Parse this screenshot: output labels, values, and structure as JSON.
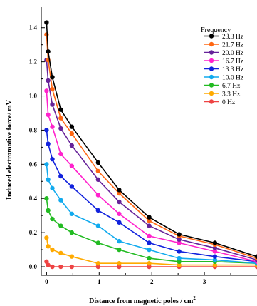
{
  "chart_data": {
    "type": "line",
    "title": "",
    "xlabel": "Distance from magnetic poles / cm",
    "xlabel_superscript": "2",
    "ylabel": "Induced electromotive force/ mV",
    "xlim": [
      -0.1,
      4.0
    ],
    "ylim": [
      -0.05,
      1.52
    ],
    "x_ticks": [
      0,
      1,
      2,
      3
    ],
    "x_tick_labels": [
      "0",
      "1",
      "2",
      "3"
    ],
    "y_ticks": [
      0.0,
      0.2,
      0.4,
      0.6,
      0.8,
      1.0,
      1.2,
      1.4
    ],
    "y_tick_labels": [
      "0.0",
      "0.2",
      "0.4",
      "0.6",
      "0.8",
      "1.0",
      "1.2",
      "1.4"
    ],
    "grid": false,
    "legend_title": "Frequency",
    "legend_position": "top-right",
    "x": [
      0,
      0.03,
      0.11,
      0.27,
      0.48,
      0.98,
      1.38,
      1.95,
      2.52,
      3.2,
      4.0
    ],
    "series": [
      {
        "name": "23.3 Hz",
        "color": "#000000",
        "values": [
          1.43,
          1.26,
          1.11,
          0.92,
          0.82,
          0.61,
          0.45,
          0.29,
          0.19,
          0.14,
          0.06
        ]
      },
      {
        "name": "21.7 Hz",
        "color": "#ff6611",
        "values": [
          1.36,
          1.21,
          1.04,
          0.87,
          0.78,
          0.56,
          0.43,
          0.27,
          0.18,
          0.13,
          0.05
        ]
      },
      {
        "name": "20.0 Hz",
        "color": "#662299",
        "values": [
          1.21,
          1.09,
          0.95,
          0.81,
          0.71,
          0.51,
          0.38,
          0.24,
          0.16,
          0.11,
          0.04
        ]
      },
      {
        "name": "16.7 Hz",
        "color": "#ff22cc",
        "values": [
          1.03,
          0.89,
          0.82,
          0.66,
          0.59,
          0.42,
          0.31,
          0.18,
          0.14,
          0.09,
          0.03
        ]
      },
      {
        "name": "13.3 Hz",
        "color": "#1122dd",
        "values": [
          0.8,
          0.72,
          0.63,
          0.53,
          0.47,
          0.33,
          0.26,
          0.14,
          0.09,
          0.06,
          0.03
        ]
      },
      {
        "name": "10.0 Hz",
        "color": "#11aaee",
        "values": [
          0.6,
          0.51,
          0.46,
          0.39,
          0.31,
          0.24,
          0.15,
          0.1,
          0.05,
          0.04,
          0.02
        ]
      },
      {
        "name": "6.7 Hz",
        "color": "#22bb22",
        "values": [
          0.4,
          0.33,
          0.28,
          0.24,
          0.2,
          0.14,
          0.1,
          0.05,
          0.03,
          0.03,
          0.02
        ]
      },
      {
        "name": "3.3 Hz",
        "color": "#ffaa00",
        "values": [
          0.17,
          0.12,
          0.1,
          0.08,
          0.06,
          0.02,
          0.02,
          0.02,
          0.01,
          0.01,
          0.01
        ]
      },
      {
        "name": "0 Hz",
        "color": "#ee4444",
        "values": [
          0.03,
          0.01,
          0.0,
          0.0,
          0.0,
          0.0,
          0.0,
          0.0,
          0.0,
          0.0,
          0.0
        ]
      }
    ]
  }
}
